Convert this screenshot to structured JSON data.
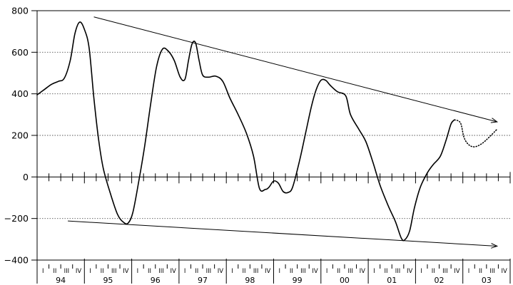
{
  "chart_data": {
    "type": "line",
    "title": "",
    "xlabel": "",
    "ylabel": "",
    "ylim": [
      -400,
      800
    ],
    "y_ticks": [
      800,
      600,
      400,
      200,
      0,
      -200,
      -400
    ],
    "y_tick_labels": [
      "800",
      "600",
      "400",
      "200",
      "0",
      "−200",
      "−400"
    ],
    "grid": "dotted horizontal at 600, 400, 200, -200",
    "x_axis": {
      "quarter_labels": [
        "I",
        "II",
        "III",
        "IV"
      ],
      "years": [
        "94",
        "95",
        "96",
        "97",
        "98",
        "99",
        "00",
        "01",
        "02",
        "03"
      ],
      "range_quarters": [
        0,
        40
      ]
    },
    "series": [
      {
        "style": "solid",
        "values_by_quarter": [
          [
            0.0,
            395
          ],
          [
            0.6,
            420
          ],
          [
            1.2,
            445
          ],
          [
            1.8,
            460
          ],
          [
            2.3,
            475
          ],
          [
            2.8,
            560
          ],
          [
            3.2,
            690
          ],
          [
            3.6,
            745
          ],
          [
            4.0,
            710
          ],
          [
            4.4,
            620
          ],
          [
            4.8,
            380
          ],
          [
            5.2,
            180
          ],
          [
            5.6,
            40
          ],
          [
            6.2,
            -80
          ],
          [
            6.8,
            -180
          ],
          [
            7.3,
            -218
          ],
          [
            7.7,
            -222
          ],
          [
            8.1,
            -170
          ],
          [
            8.6,
            -20
          ],
          [
            9.1,
            150
          ],
          [
            9.6,
            350
          ],
          [
            10.1,
            530
          ],
          [
            10.6,
            615
          ],
          [
            11.1,
            605
          ],
          [
            11.6,
            560
          ],
          [
            12.1,
            480
          ],
          [
            12.5,
            470
          ],
          [
            12.8,
            560
          ],
          [
            13.1,
            640
          ],
          [
            13.4,
            645
          ],
          [
            13.7,
            560
          ],
          [
            14.0,
            490
          ],
          [
            14.5,
            480
          ],
          [
            15.1,
            485
          ],
          [
            15.7,
            460
          ],
          [
            16.3,
            380
          ],
          [
            17.0,
            300
          ],
          [
            17.7,
            210
          ],
          [
            18.3,
            100
          ],
          [
            18.8,
            -55
          ],
          [
            19.3,
            -60
          ],
          [
            19.6,
            -50
          ],
          [
            20.0,
            -20
          ],
          [
            20.4,
            -30
          ],
          [
            20.8,
            -70
          ],
          [
            21.2,
            -75
          ],
          [
            21.6,
            -50
          ],
          [
            22.2,
            80
          ],
          [
            22.7,
            210
          ],
          [
            23.2,
            340
          ],
          [
            23.6,
            420
          ],
          [
            24.0,
            465
          ],
          [
            24.4,
            465
          ],
          [
            24.8,
            440
          ],
          [
            25.4,
            410
          ],
          [
            26.1,
            390
          ],
          [
            26.5,
            300
          ],
          [
            27.2,
            230
          ],
          [
            27.8,
            170
          ],
          [
            28.4,
            70
          ],
          [
            29.0,
            -40
          ],
          [
            29.7,
            -140
          ],
          [
            30.3,
            -215
          ],
          [
            30.8,
            -295
          ],
          [
            31.1,
            -302
          ],
          [
            31.5,
            -260
          ],
          [
            31.9,
            -150
          ],
          [
            32.4,
            -50
          ],
          [
            33.0,
            20
          ],
          [
            33.5,
            60
          ],
          [
            34.1,
            100
          ],
          [
            34.6,
            180
          ],
          [
            35.0,
            255
          ],
          [
            35.3,
            275
          ]
        ]
      },
      {
        "style": "dotted",
        "values_by_quarter": [
          [
            35.3,
            275
          ],
          [
            35.8,
            260
          ],
          [
            36.1,
            190
          ],
          [
            36.5,
            155
          ],
          [
            37.0,
            145
          ],
          [
            37.6,
            160
          ],
          [
            38.2,
            190
          ],
          [
            38.9,
            230
          ]
        ]
      }
    ],
    "trend_lines": [
      {
        "from": [
          4.8,
          770
        ],
        "to": [
          38.9,
          265
        ],
        "arrow": true
      },
      {
        "from": [
          2.6,
          -212
        ],
        "to": [
          38.9,
          -333
        ],
        "arrow": true
      }
    ]
  }
}
